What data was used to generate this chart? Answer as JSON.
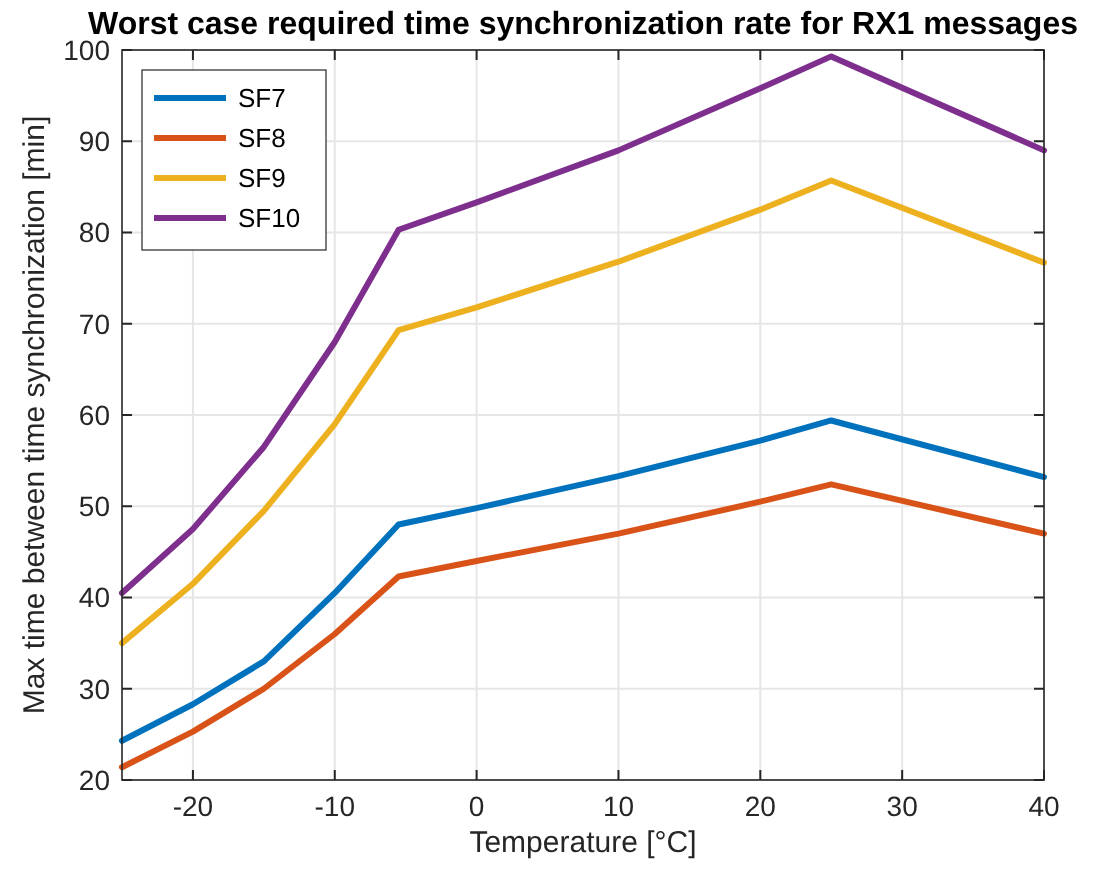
{
  "chart_data": {
    "type": "line",
    "title": "Worst case required time synchronization rate for RX1 messages",
    "xlabel": "Temperature [°C]",
    "ylabel": "Max time between time synchronization [min]",
    "x": [
      -25,
      -20,
      -15,
      -10,
      -5.5,
      0,
      10,
      20,
      25,
      40
    ],
    "series": [
      {
        "name": "SF7",
        "color": "#0072bd",
        "values": [
          24.3,
          28.3,
          33,
          40.5,
          48,
          49.8,
          53.3,
          57.2,
          59.4,
          53.2
        ]
      },
      {
        "name": "SF8",
        "color": "#d95319",
        "values": [
          21.4,
          25.3,
          30,
          36,
          42.3,
          44,
          47,
          50.5,
          52.4,
          47
        ]
      },
      {
        "name": "SF9",
        "color": "#edb120",
        "values": [
          35,
          41.5,
          49.5,
          59,
          69.3,
          71.8,
          76.8,
          82.5,
          85.7,
          76.7
        ]
      },
      {
        "name": "SF10",
        "color": "#7e2f8e",
        "values": [
          40.5,
          47.5,
          56.5,
          68,
          80.3,
          83.3,
          89,
          95.8,
          99.3,
          89
        ]
      }
    ],
    "xlim": [
      -25,
      40
    ],
    "xticks": [
      -20,
      -10,
      0,
      10,
      20,
      30,
      40
    ],
    "ylim": [
      20,
      100
    ],
    "yticks": [
      20,
      30,
      40,
      50,
      60,
      70,
      80,
      90,
      100
    ],
    "grid": true,
    "legend": "top left",
    "marker": "none",
    "line_style": "solid"
  }
}
